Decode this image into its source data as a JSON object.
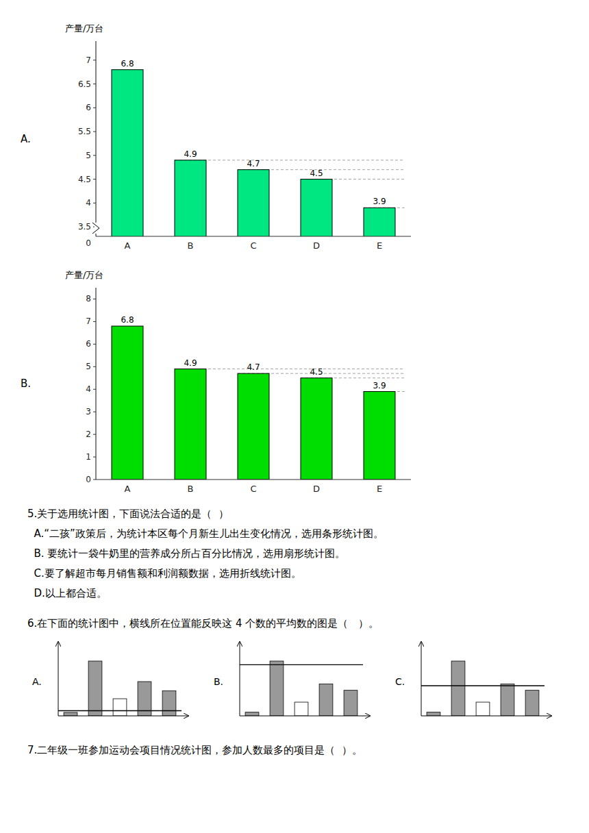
{
  "chart_data": [
    {
      "type": "bar",
      "y_label": "产量/万台",
      "annotations": [
        "A.",
        "0"
      ],
      "categories": [
        "A",
        "B",
        "C",
        "D",
        "E"
      ],
      "values": [
        6.8,
        4.9,
        4.7,
        4.5,
        3.9
      ],
      "color": "#00e680",
      "ylim": [
        3.3,
        7.4
      ],
      "yticks": [
        3.5,
        4,
        4.5,
        5,
        5.5,
        6,
        6.5,
        7
      ],
      "data_labels": true
    },
    {
      "type": "bar",
      "y_label": "产量/万台",
      "annotations": [
        "B."
      ],
      "categories": [
        "A",
        "B",
        "C",
        "D",
        "E"
      ],
      "values": [
        6.8,
        4.9,
        4.7,
        4.5,
        3.9
      ],
      "color": "#00dd00",
      "ylim": [
        0,
        8.5
      ],
      "yticks": [
        0,
        1,
        2,
        3,
        4,
        5,
        6,
        7,
        8
      ],
      "data_labels": true
    },
    {
      "type": "bar",
      "annotations": [
        "A."
      ],
      "categories": [
        null,
        null,
        null,
        null,
        null
      ],
      "values": [
        0.3,
        4.8,
        1.5,
        3.0,
        2.2
      ],
      "colors": [
        "#999999",
        "#999999",
        "#ffffff",
        "#999999",
        "#999999"
      ],
      "reference_line": 0.45,
      "ylim": [
        0,
        6.0
      ],
      "yticks": [],
      "tick_labels": false
    },
    {
      "type": "bar",
      "annotations": [
        "B."
      ],
      "categories": [
        null,
        null,
        null,
        null,
        null
      ],
      "values": [
        0.4,
        6.0,
        1.5,
        3.5,
        2.8
      ],
      "colors": [
        "#999999",
        "#999999",
        "#ffffff",
        "#999999",
        "#999999"
      ],
      "reference_line": 5.6,
      "ylim": [
        0,
        7.5
      ],
      "yticks": [],
      "tick_labels": false
    },
    {
      "type": "bar",
      "annotations": [
        "C."
      ],
      "categories": [
        null,
        null,
        null,
        null,
        null
      ],
      "values": [
        0.4,
        6.0,
        1.5,
        3.5,
        2.8
      ],
      "colors": [
        "#999999",
        "#999999",
        "#ffffff",
        "#999999",
        "#999999"
      ],
      "reference_line": 3.3,
      "ylim": [
        0,
        7.5
      ],
      "yticks": [],
      "tick_labels": false
    }
  ],
  "annotations": [
    "5.关于选用统计图，下面说法合适的是（  ）",
    "  A.“二孩”政策后，为统计本区每个月新生儿出生变化情况，选用条形统计图。",
    "  B. 要统计一袋牛奶里的营养成分所占百分比情况，选用扇形统计图。",
    "  C.要了解超市每月销售额和利润额数据，选用折线统计图。",
    "  D.以上都合适。",
    "6.在下面的统计图中，横线所在位置能反映这 4 个数的平均数的图是（   ）。",
    "7.二年级一班参加运动会项目情况统计图，参加人数最多的项目是（  ）。"
  ]
}
